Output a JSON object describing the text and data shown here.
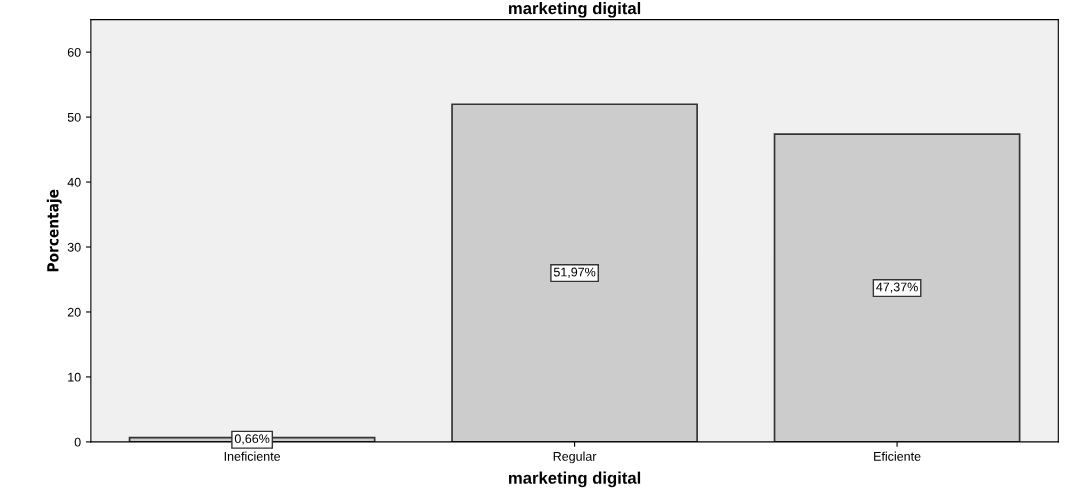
{
  "chart_data": {
    "type": "bar",
    "title": "marketing digital",
    "xlabel": "marketing digital",
    "ylabel": "Porcentaje",
    "categories": [
      "Ineficiente",
      "Regular",
      "Eficiente"
    ],
    "values": [
      0.66,
      51.97,
      47.37
    ],
    "value_labels": [
      "0,66%",
      "51,97%",
      "47,37%"
    ],
    "color": "#cccccc",
    "ylim": [
      0,
      65
    ],
    "yticks": [
      0,
      10,
      20,
      30,
      40,
      50,
      60
    ],
    "grid": false,
    "legend": false
  }
}
